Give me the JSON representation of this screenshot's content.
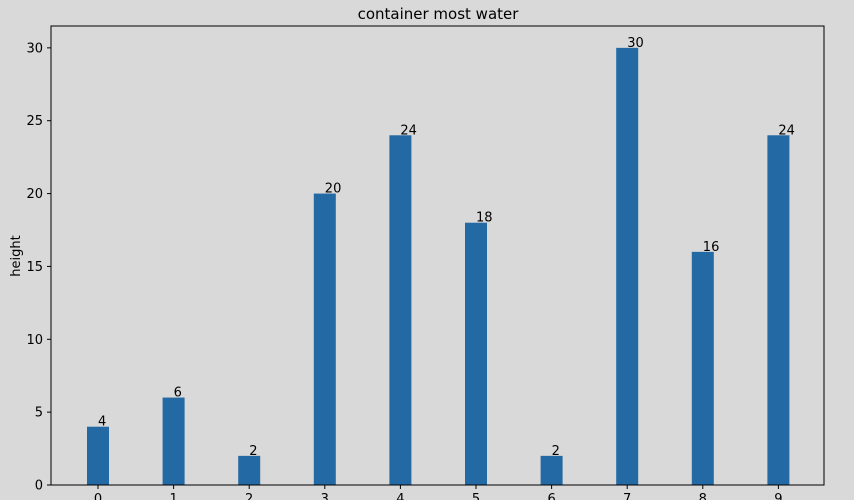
{
  "chart_data": {
    "type": "bar",
    "title": "container most water",
    "xlabel": "",
    "ylabel": "height",
    "categories": [
      "0",
      "1",
      "2",
      "3",
      "4",
      "5",
      "6",
      "7",
      "8",
      "9"
    ],
    "values": [
      4,
      6,
      2,
      20,
      24,
      18,
      2,
      30,
      16,
      24
    ],
    "data_labels": [
      "4",
      "6",
      "2",
      "20",
      "24",
      "18",
      "2",
      "30",
      "16",
      "24"
    ],
    "yticks": [
      0,
      5,
      10,
      15,
      20,
      25,
      30
    ],
    "ylim": [
      0,
      31.5
    ],
    "grid": false,
    "bar_color": "#2369a4",
    "background_color": "#d9d9d9"
  }
}
